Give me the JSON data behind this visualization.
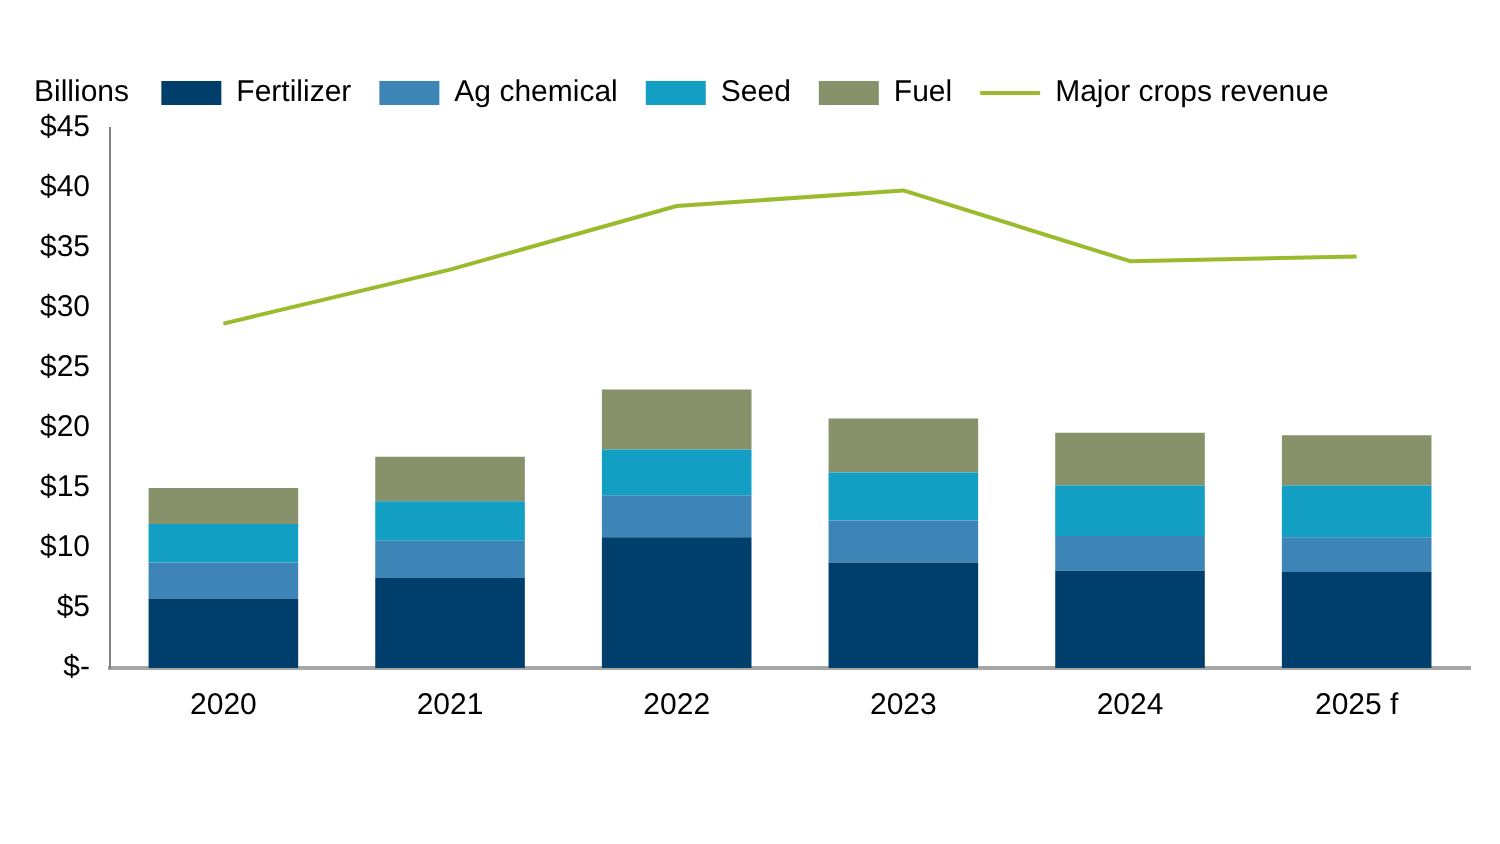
{
  "chart_data": {
    "type": "bar",
    "stacked": true,
    "ylabel": "Billions",
    "categories": [
      "2020",
      "2021",
      "2022",
      "2023",
      "2024",
      "2025 f"
    ],
    "series": [
      {
        "name": "Fertilizer",
        "color": "#003f6b",
        "values": [
          5.8,
          7.5,
          10.9,
          8.8,
          8.1,
          8.0
        ]
      },
      {
        "name": "Ag chemical",
        "color": "#3c85b6",
        "values": [
          3.0,
          3.1,
          3.5,
          3.5,
          2.9,
          2.9
        ]
      },
      {
        "name": "Seed",
        "color": "#139ec3",
        "values": [
          3.2,
          3.3,
          3.8,
          4.0,
          4.2,
          4.3
        ]
      },
      {
        "name": "Fuel",
        "color": "#88926a",
        "values": [
          3.0,
          3.7,
          5.0,
          4.5,
          4.4,
          4.2
        ]
      },
      {
        "name": "Major crops revenue",
        "type": "line",
        "color": "#9bbb2e",
        "values": [
          28.7,
          33.2,
          38.5,
          39.8,
          33.9,
          34.3
        ]
      }
    ],
    "ylim": [
      0,
      45
    ],
    "yticks": [
      {
        "value": 0,
        "label": "$-"
      },
      {
        "value": 5,
        "label": "$5"
      },
      {
        "value": 10,
        "label": "$10"
      },
      {
        "value": 15,
        "label": "$15"
      },
      {
        "value": 20,
        "label": "$20"
      },
      {
        "value": 25,
        "label": "$25"
      },
      {
        "value": 30,
        "label": "$30"
      },
      {
        "value": 35,
        "label": "$35"
      },
      {
        "value": 40,
        "label": "$40"
      },
      {
        "value": 45,
        "label": "$45"
      }
    ],
    "grid": false,
    "legend": "top",
    "marker": "none"
  }
}
